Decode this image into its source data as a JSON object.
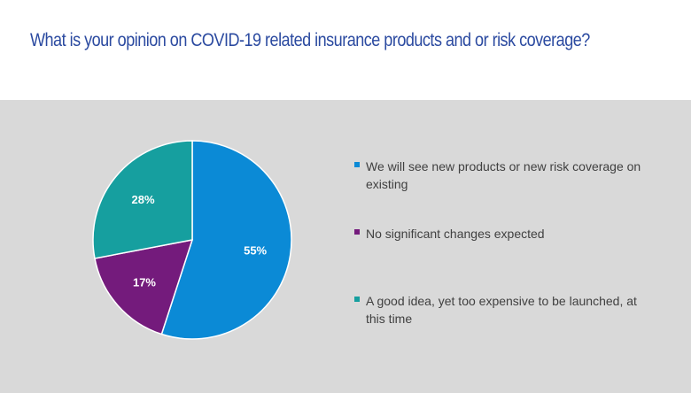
{
  "title": "What is your opinion on COVID-19 related insurance products and or risk coverage?",
  "chart_data": {
    "type": "pie",
    "slices": [
      {
        "label": "We will see new products or new risk coverage on existing",
        "value": 55,
        "display": "55%",
        "color": "#0b8ad6"
      },
      {
        "label": "No significant changes expected",
        "value": 17,
        "display": "17%",
        "color": "#741b7c"
      },
      {
        "label": "A good idea, yet too expensive to be launched, at this time",
        "value": 28,
        "display": "28%",
        "color": "#169f9f"
      }
    ],
    "start_angle_deg": 0,
    "direction": "clockwise",
    "legend_position": "right"
  }
}
